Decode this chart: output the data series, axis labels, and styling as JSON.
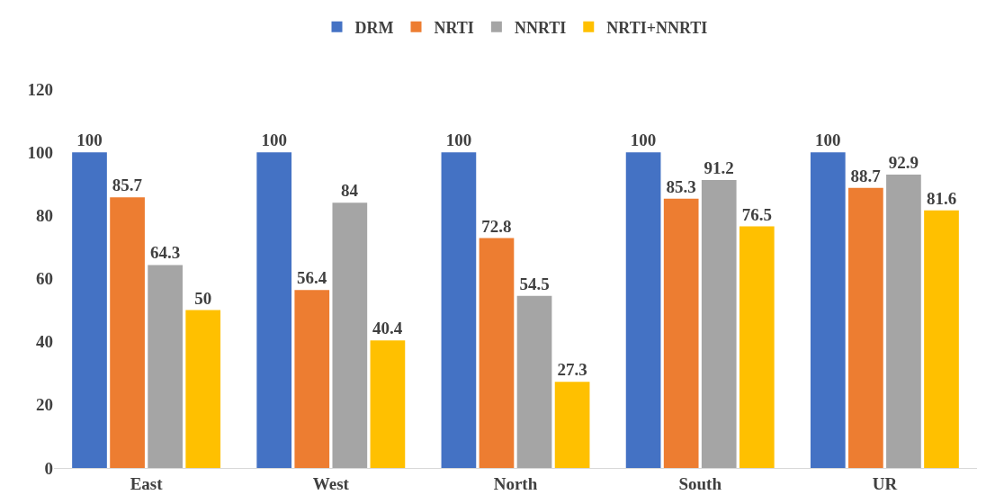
{
  "chart_data": {
    "type": "bar",
    "categories": [
      "East",
      "West",
      "North",
      "South",
      "UR"
    ],
    "series": [
      {
        "name": "DRM",
        "color": "#4472c4",
        "values": [
          100,
          100,
          100,
          100,
          100
        ]
      },
      {
        "name": "NRTI",
        "color": "#ed7d31",
        "values": [
          85.7,
          56.4,
          72.8,
          85.3,
          88.7
        ]
      },
      {
        "name": "NNRTI",
        "color": "#a5a5a5",
        "values": [
          64.3,
          84,
          54.5,
          91.2,
          92.9
        ]
      },
      {
        "name": "NRTI+NNRTI",
        "color": "#ffc000",
        "values": [
          50,
          40.4,
          27.3,
          76.5,
          81.6
        ]
      }
    ],
    "ylim": [
      0,
      120
    ],
    "yticks": [
      0,
      20,
      40,
      60,
      80,
      100,
      120
    ],
    "legend": "top",
    "data_labels": true
  }
}
